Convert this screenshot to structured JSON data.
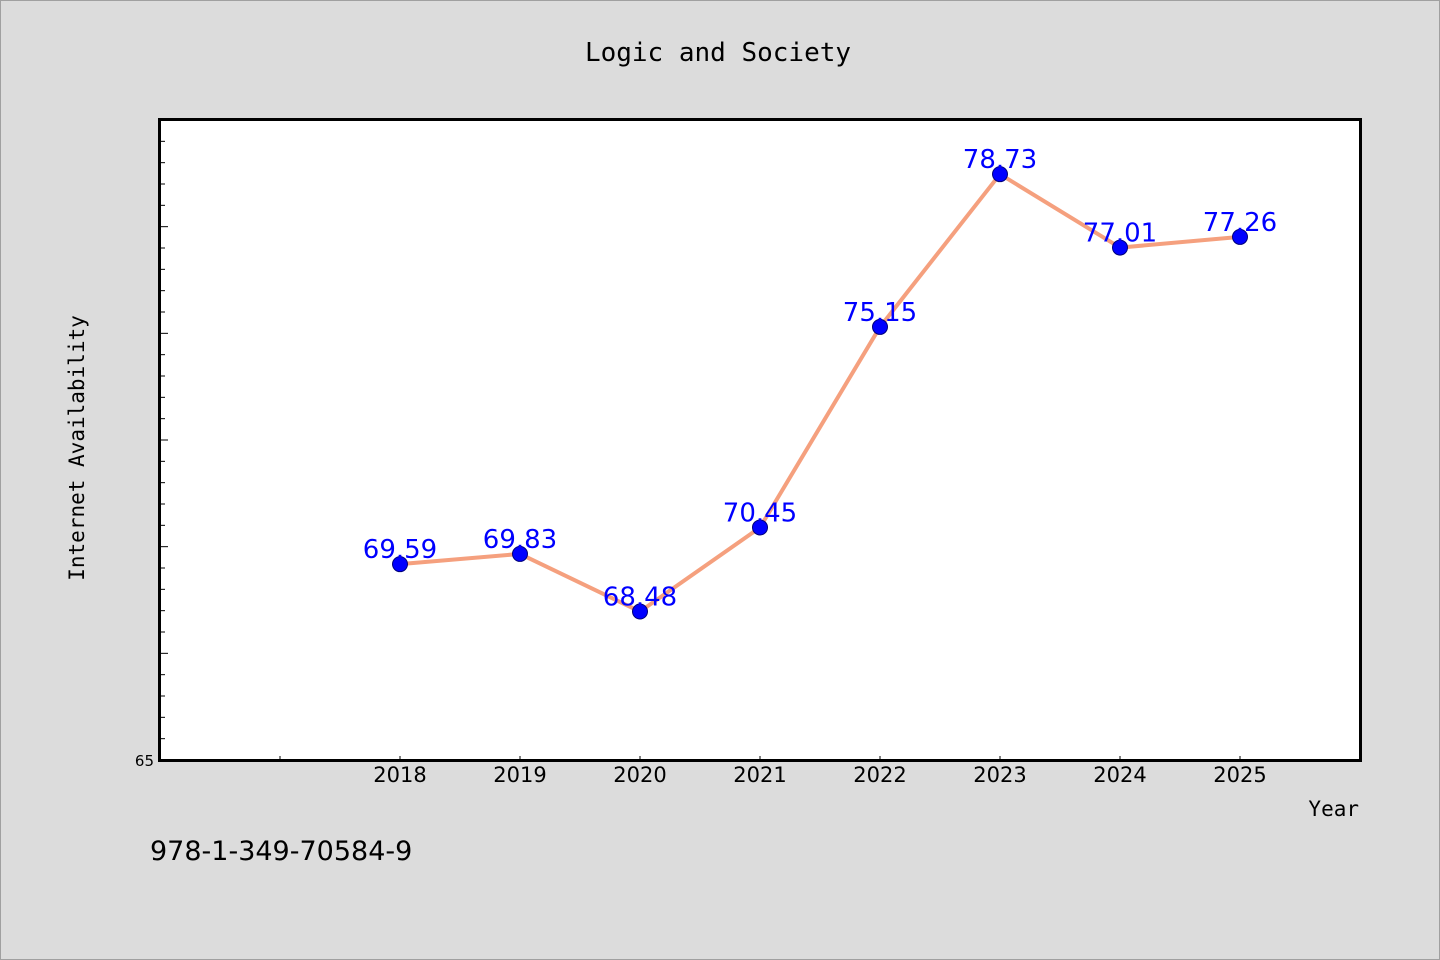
{
  "chart_data": {
    "type": "line",
    "title": "Logic and Society",
    "xlabel": "Year",
    "ylabel": "Internet Availability",
    "x": [
      "2018",
      "2019",
      "2020",
      "2021",
      "2022",
      "2023",
      "2024",
      "2025"
    ],
    "series": [
      {
        "values": [
          69.59,
          69.83,
          68.48,
          70.45,
          75.15,
          78.73,
          77.01,
          77.26
        ],
        "data_labels": [
          "69.59",
          "69.83",
          "68.48",
          "70.45",
          "75.15",
          "78.73",
          "77.01",
          "77.26"
        ]
      }
    ],
    "yticks_labeled": [
      "65"
    ],
    "ylim": [
      65,
      80
    ],
    "x_slots": 10,
    "grid": false,
    "legend": "none",
    "colors": {
      "line": "#f5a07e",
      "marker": "#0000ff",
      "marker_edge": "#00007a",
      "data_label": "#0000ff",
      "plot_bg": "#ffffff",
      "page_bg": "#dcdcdc"
    }
  },
  "footnote": "978-1-349-70584-9"
}
